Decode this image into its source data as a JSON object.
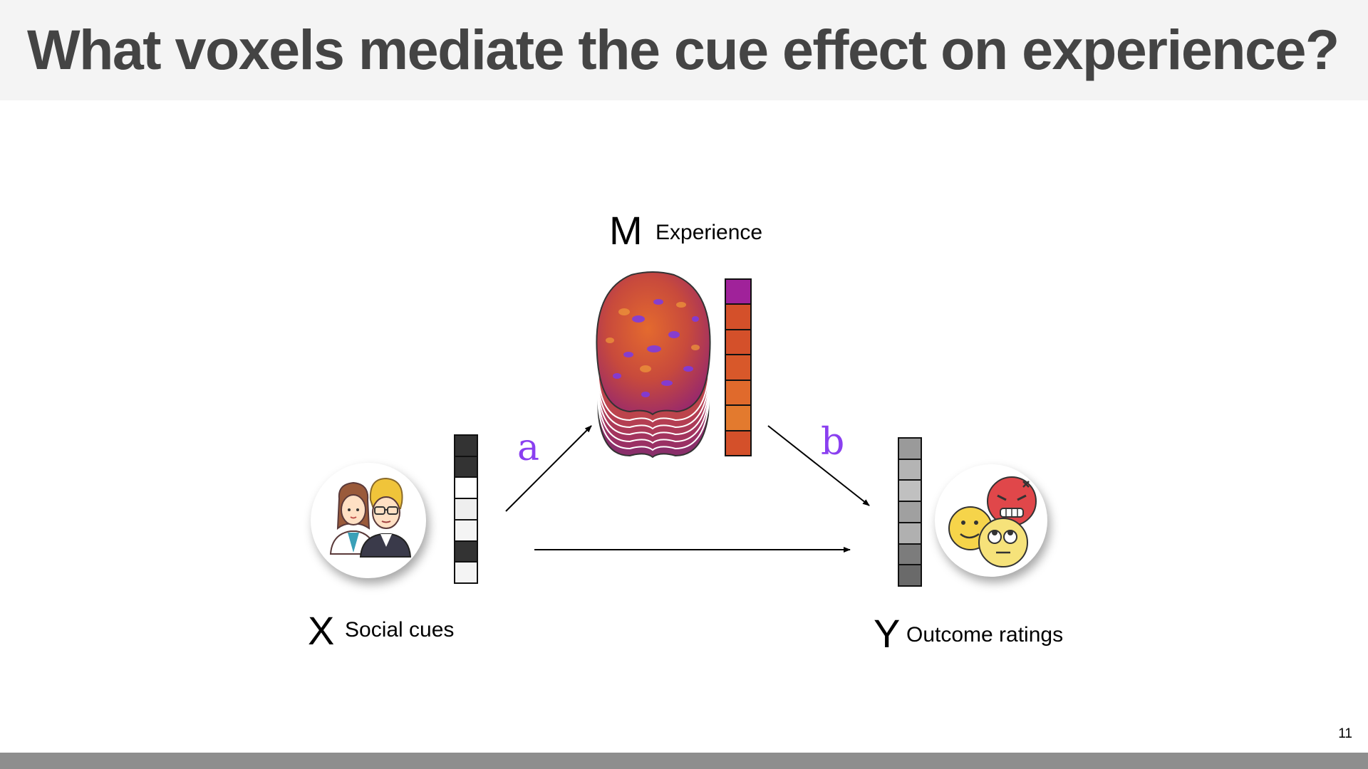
{
  "slide": {
    "title": "What voxels mediate the cue effect on experience?",
    "page_number": "11"
  },
  "diagram": {
    "x": {
      "letter": "X",
      "label": "Social cues",
      "icon": "doctors-icon",
      "vector_colors": [
        "#333333",
        "#333333",
        "#ffffff",
        "#eeeeee",
        "#f4f4f4",
        "#333333",
        "#f4f4f4"
      ]
    },
    "m": {
      "letter": "M",
      "label": "Experience",
      "icon": "brain-slices-icon",
      "vector_colors": [
        "#a0229a",
        "#d4502a",
        "#d4502a",
        "#d8582a",
        "#e06a2c",
        "#e37a2e",
        "#d4502a"
      ]
    },
    "y": {
      "letter": "Y",
      "label": "Outcome ratings",
      "icon": "emoji-faces-icon",
      "vector_colors": [
        "#9a9a9a",
        "#b4b4b4",
        "#c0c0c0",
        "#a0a0a0",
        "#b0b0b0",
        "#7c7c7c",
        "#6a6a6a"
      ]
    },
    "paths": {
      "a": "a",
      "b": "b"
    },
    "colors": {
      "path_label": "#8a3ff0",
      "arrow": "#000000"
    }
  }
}
